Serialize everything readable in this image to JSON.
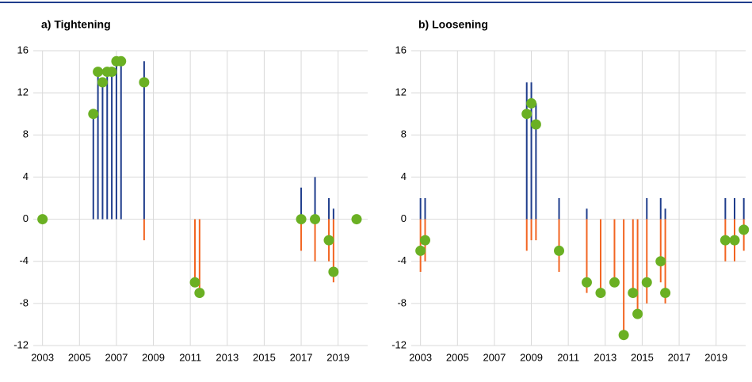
{
  "chart_data": [
    {
      "type": "stem",
      "title": "a) Tightening",
      "x": [
        2003.0,
        2005.75,
        2006.0,
        2006.25,
        2006.5,
        2006.75,
        2007.0,
        2007.25,
        2008.5,
        2011.25,
        2011.5,
        2017.0,
        2017.75,
        2018.5,
        2018.75,
        2020.0
      ],
      "series": [
        {
          "color": "#1f3d8c",
          "mark": "line",
          "values": [
            null,
            10,
            14,
            13,
            14,
            14,
            15,
            15,
            15,
            null,
            null,
            3,
            4,
            2,
            1,
            null
          ]
        },
        {
          "color": "#f26522",
          "mark": "line",
          "values": [
            null,
            null,
            null,
            null,
            null,
            null,
            null,
            null,
            -2,
            -6,
            -7,
            -3,
            -4,
            -4,
            -6,
            null
          ]
        },
        {
          "color": "#6ab023",
          "mark": "dot",
          "values": [
            0,
            10,
            14,
            13,
            14,
            14,
            15,
            15,
            13,
            -6,
            -7,
            0,
            0,
            -2,
            -5,
            0
          ]
        }
      ],
      "xlim": [
        2002.5,
        2020.6
      ],
      "xticks": [
        2003,
        2005,
        2007,
        2009,
        2011,
        2013,
        2015,
        2017,
        2019
      ],
      "ylim": [
        -12,
        16
      ],
      "yticks": [
        16,
        12,
        8,
        4,
        0,
        -4,
        -8,
        -12
      ],
      "grid": true
    },
    {
      "type": "stem",
      "title": "b) Loosening",
      "x": [
        2003.0,
        2003.25,
        2008.75,
        2009.0,
        2009.25,
        2010.5,
        2012.0,
        2012.75,
        2013.5,
        2014.0,
        2014.5,
        2014.75,
        2015.25,
        2016.0,
        2016.25,
        2019.5,
        2020.0,
        2020.5
      ],
      "series": [
        {
          "color": "#1f3d8c",
          "mark": "line",
          "values": [
            2,
            2,
            13,
            13,
            11,
            2,
            1,
            null,
            null,
            null,
            null,
            null,
            2,
            2,
            1,
            2,
            2,
            2
          ]
        },
        {
          "color": "#f26522",
          "mark": "line",
          "values": [
            -5,
            -4,
            -3,
            -2,
            -2,
            -5,
            -7,
            -7,
            -6,
            -11,
            -7,
            -9,
            -8,
            -6,
            -8,
            -4,
            -4,
            -3
          ]
        },
        {
          "color": "#6ab023",
          "mark": "dot",
          "values": [
            -3,
            -2,
            10,
            11,
            9,
            -3,
            -6,
            -7,
            -6,
            -11,
            -7,
            -9,
            -6,
            -4,
            -7,
            -2,
            -2,
            -1
          ]
        }
      ],
      "xlim": [
        2002.5,
        2020.6
      ],
      "xticks": [
        2003,
        2005,
        2007,
        2009,
        2011,
        2013,
        2015,
        2017,
        2019
      ],
      "ylim": [
        -12,
        16
      ],
      "yticks": [
        16,
        12,
        8,
        4,
        0,
        -4,
        -8,
        -12
      ],
      "grid": true
    }
  ]
}
